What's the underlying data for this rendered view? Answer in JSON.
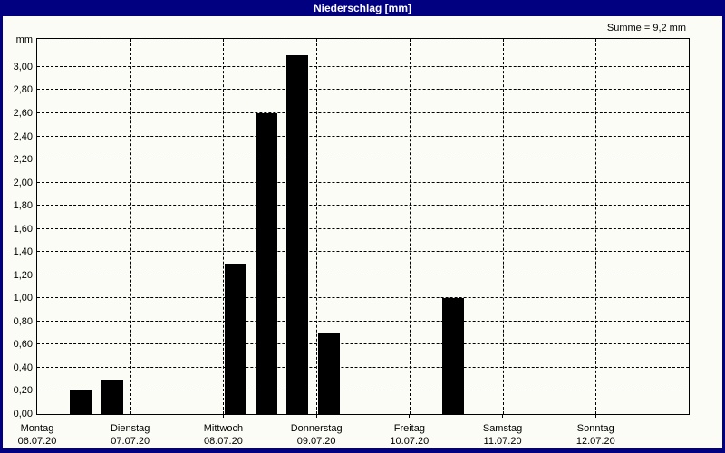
{
  "window": {
    "title": "Niederschlag [mm]"
  },
  "summary_label": "Summe = 9,2 mm",
  "colors": {
    "titlebar_bg": "#000080",
    "titlebar_text": "#FFFFFF",
    "content_bg": "#FCFCF7",
    "bar": "#000000",
    "grid": "#000000"
  },
  "chart_data": {
    "type": "bar",
    "title": "Niederschlag [mm]",
    "ylabel": "mm",
    "sum_text": "Summe = 9,2 mm",
    "ylim": [
      0,
      3.242
    ],
    "y_tick_step": 0.2,
    "grid": "dashed horizontal every 0,20 mm; dashed vertical at day boundaries",
    "legend_position": "none",
    "y_ticks": [
      {
        "value": 0.0,
        "label": "0,00"
      },
      {
        "value": 0.2,
        "label": "0,20"
      },
      {
        "value": 0.4,
        "label": "0,40"
      },
      {
        "value": 0.6,
        "label": "0,60"
      },
      {
        "value": 0.8,
        "label": "0,80"
      },
      {
        "value": 1.0,
        "label": "1,00"
      },
      {
        "value": 1.2,
        "label": "1,20"
      },
      {
        "value": 1.4,
        "label": "1,40"
      },
      {
        "value": 1.6,
        "label": "1,60"
      },
      {
        "value": 1.8,
        "label": "1,80"
      },
      {
        "value": 2.0,
        "label": "2,00"
      },
      {
        "value": 2.2,
        "label": "2,20"
      },
      {
        "value": 2.4,
        "label": "2,40"
      },
      {
        "value": 2.6,
        "label": "2,60"
      },
      {
        "value": 2.8,
        "label": "2,80"
      },
      {
        "value": 3.0,
        "label": "3,00"
      }
    ],
    "categories": [
      {
        "day": "Montag",
        "date": "06.07.20"
      },
      {
        "day": "Dienstag",
        "date": "07.07.20"
      },
      {
        "day": "Mittwoch",
        "date": "08.07.20"
      },
      {
        "day": "Donnerstag",
        "date": "09.07.20"
      },
      {
        "day": "Freitag",
        "date": "10.07.20"
      },
      {
        "day": "Samstag",
        "date": "11.07.20"
      },
      {
        "day": "Sonntag",
        "date": "12.07.20"
      }
    ],
    "bars": [
      {
        "day": "Montag",
        "value": 0.2,
        "x_frac": 0.0499
      },
      {
        "day": "Montag",
        "value": 0.3,
        "x_frac": 0.0985
      },
      {
        "day": "Mittwoch",
        "value": 1.3,
        "x_frac": 0.2885
      },
      {
        "day": "Mittwoch",
        "value": 2.6,
        "x_frac": 0.3357
      },
      {
        "day": "Mittwoch",
        "value": 3.1,
        "x_frac": 0.3828
      },
      {
        "day": "Donnerstag",
        "value": 0.7,
        "x_frac": 0.4314
      },
      {
        "day": "Freitag",
        "value": 1.0,
        "x_frac": 0.6214
      }
    ],
    "bar_width_frac": 0.0333
  }
}
